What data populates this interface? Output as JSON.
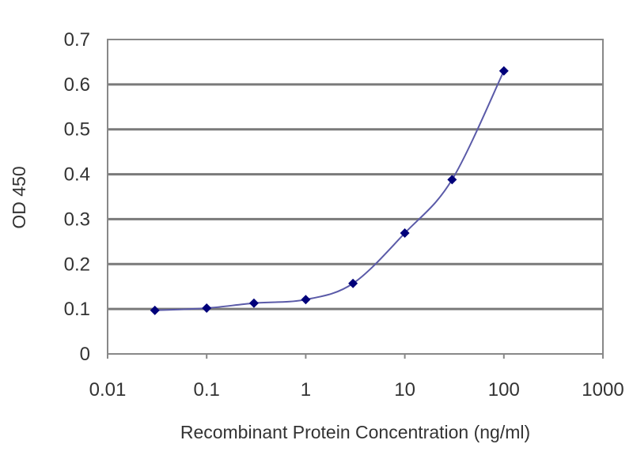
{
  "chart_data": {
    "type": "line",
    "title": "",
    "xlabel": "Recombinant Protein Concentration (ng/ml)",
    "ylabel": "OD 450",
    "xscale": "log",
    "xlim": [
      0.01,
      1000
    ],
    "ylim": [
      0,
      0.7
    ],
    "xticks": [
      "0.01",
      "0.1",
      "1",
      "10",
      "100",
      "1000"
    ],
    "yticks": [
      "0",
      "0.1",
      "0.2",
      "0.3",
      "0.4",
      "0.5",
      "0.6",
      "0.7"
    ],
    "grid": "horizontal",
    "legend": "none",
    "series": [
      {
        "x": [
          0.03,
          0.1,
          0.3,
          1,
          3,
          10,
          30,
          100
        ],
        "y": [
          0.097,
          0.102,
          0.113,
          0.121,
          0.157,
          0.269,
          0.388,
          0.63
        ],
        "color": "#00007a",
        "line_color": "#5a5aa8",
        "marker": "diamond",
        "smooth": true
      }
    ]
  }
}
